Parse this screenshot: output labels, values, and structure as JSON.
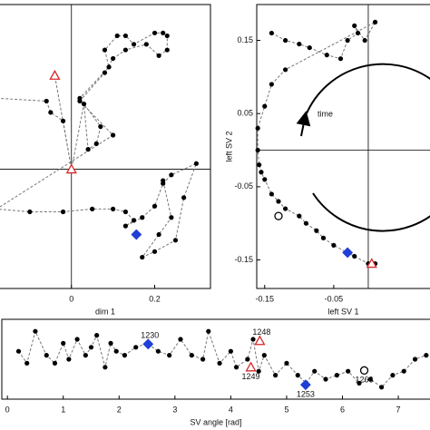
{
  "chart_data": [
    {
      "type": "scatter",
      "xlabel": "dim 1",
      "line_style": "dashed",
      "color": "#000000",
      "xlim": [
        -0.176,
        0.334
      ],
      "ylim": [
        -0.42,
        0.58
      ],
      "xticks": [
        0,
        0.2
      ],
      "crosshair": [
        0,
        0
      ],
      "x": [
        -0.18,
        -0.06,
        -0.05,
        -0.02,
        0.0,
        -0.04,
        0.0,
        0.03,
        0.04,
        0.06,
        0.07,
        0.02,
        0.09,
        0.08,
        0.11,
        0.13,
        0.15,
        0.2,
        0.22,
        0.23,
        0.23,
        0.21,
        0.18,
        0.13,
        0.1,
        0.08,
        0.02,
        0.1,
        -0.18,
        -0.1,
        -0.02,
        0.05,
        0.1,
        0.13,
        0.15,
        0.13,
        0.17,
        0.2,
        0.22,
        0.24,
        0.3,
        0.27,
        0.25,
        0.2,
        0.17,
        0.21,
        0.24,
        0.22
      ],
      "values": [
        0.25,
        0.24,
        0.2,
        0.17,
        0.0,
        0.33,
        0.0,
        0.23,
        0.07,
        0.09,
        0.15,
        0.25,
        0.36,
        0.42,
        0.47,
        0.47,
        0.44,
        0.48,
        0.48,
        0.47,
        0.42,
        0.4,
        0.44,
        0.42,
        0.39,
        0.34,
        0.24,
        0.12,
        -0.14,
        -0.15,
        -0.15,
        -0.14,
        -0.14,
        -0.15,
        -0.18,
        -0.2,
        -0.17,
        -0.13,
        -0.05,
        -0.02,
        0.02,
        -0.1,
        -0.25,
        -0.29,
        -0.31,
        -0.23,
        -0.17,
        -0.04
      ],
      "markers": [
        {
          "shape": "triangle",
          "color": "#d62728",
          "x": -0.04,
          "y": 0.33
        },
        {
          "shape": "triangle",
          "color": "#d62728",
          "x": 0.0,
          "y": 0.0
        },
        {
          "shape": "diamond",
          "color": "#1f3fd6",
          "x": 0.156,
          "y": -0.23
        }
      ]
    },
    {
      "type": "scatter",
      "xlabel": "left SV 1",
      "ylabel": "left SV 2",
      "annotation": "time",
      "line_style": "dashed",
      "color": "#000000",
      "xlim": [
        -0.1615,
        0.092
      ],
      "ylim": [
        -0.189,
        0.199
      ],
      "xticks": [
        -0.15,
        -0.05
      ],
      "yticks": [
        0.15,
        0.05,
        -0.05,
        -0.15
      ],
      "crosshair": [
        0,
        0
      ],
      "x": [
        -0.14,
        -0.12,
        -0.1,
        -0.085,
        -0.06,
        -0.04,
        -0.03,
        -0.015,
        -0.02,
        -0.005,
        0.01,
        -0.12,
        -0.14,
        -0.15,
        -0.16,
        -0.16,
        -0.158,
        -0.155,
        -0.15,
        -0.14,
        -0.13,
        -0.12,
        -0.1,
        -0.09,
        -0.075,
        -0.065,
        -0.05,
        -0.03,
        -0.02,
        0.0,
        0.01
      ],
      "values": [
        0.16,
        0.15,
        0.145,
        0.14,
        0.13,
        0.125,
        0.15,
        0.16,
        0.17,
        0.15,
        0.175,
        0.11,
        0.09,
        0.06,
        0.03,
        0.0,
        -0.02,
        -0.03,
        -0.04,
        -0.06,
        -0.07,
        -0.08,
        -0.09,
        -0.1,
        -0.11,
        -0.12,
        -0.13,
        -0.14,
        -0.145,
        -0.155,
        -0.155
      ],
      "markers": [
        {
          "shape": "circle",
          "color": "#000000",
          "x": -0.13,
          "y": -0.09
        },
        {
          "shape": "diamond",
          "color": "#1f3fd6",
          "x": -0.03,
          "y": -0.14
        },
        {
          "shape": "triangle",
          "color": "#d62728",
          "x": 0.005,
          "y": -0.155
        }
      ]
    },
    {
      "type": "scatter",
      "xlabel": "SV angle [rad]",
      "line_style": "dashed",
      "color": "#000000",
      "xlim": [
        -0.1,
        7.6
      ],
      "ylim": [
        0,
        1
      ],
      "xticks": [
        0,
        1,
        2,
        3,
        4,
        5,
        6,
        7
      ],
      "x": [
        0.2,
        0.35,
        0.5,
        0.7,
        0.85,
        1.0,
        1.1,
        1.25,
        1.4,
        1.5,
        1.6,
        1.75,
        1.85,
        1.95,
        2.1,
        2.3,
        2.5,
        2.7,
        2.9,
        3.1,
        3.3,
        3.5,
        3.6,
        3.8,
        4.0,
        4.1,
        4.3,
        4.4,
        4.5,
        4.6,
        4.8,
        5.0,
        5.2,
        5.35,
        5.5,
        5.7,
        5.9,
        6.1,
        6.3,
        6.5,
        6.7,
        6.9,
        7.1,
        7.3,
        7.5
      ],
      "values": [
        0.6,
        0.45,
        0.85,
        0.55,
        0.45,
        0.7,
        0.5,
        0.75,
        0.55,
        0.65,
        0.8,
        0.4,
        0.7,
        0.6,
        0.55,
        0.65,
        0.7,
        0.6,
        0.55,
        0.75,
        0.55,
        0.5,
        0.85,
        0.45,
        0.6,
        0.4,
        0.5,
        0.75,
        0.35,
        0.55,
        0.3,
        0.45,
        0.3,
        0.2,
        0.35,
        0.25,
        0.3,
        0.35,
        0.2,
        0.25,
        0.15,
        0.3,
        0.35,
        0.5,
        0.55
      ],
      "markers": [
        {
          "shape": "diamond",
          "color": "#1f3fd6",
          "x": 2.52,
          "y": 0.69,
          "label": "1230"
        },
        {
          "shape": "triangle",
          "color": "#d62728",
          "x": 4.52,
          "y": 0.73,
          "label": "1248"
        },
        {
          "shape": "triangle",
          "color": "#d62728",
          "x": 4.36,
          "y": 0.4,
          "label": "1249"
        },
        {
          "shape": "diamond",
          "color": "#1f3fd6",
          "x": 5.34,
          "y": 0.18,
          "label": "1253"
        },
        {
          "shape": "circle",
          "color": "#000000",
          "x": 6.39,
          "y": 0.36,
          "label": "1266"
        }
      ]
    }
  ]
}
